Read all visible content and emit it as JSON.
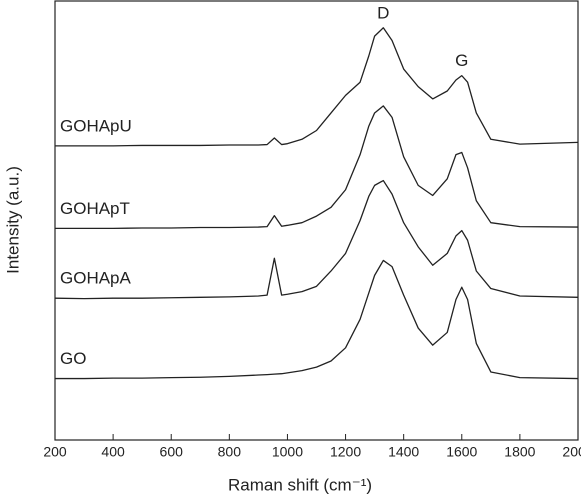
{
  "chart_data": {
    "type": "line",
    "x_label": "Raman shift (cm⁻¹)",
    "y_label": "Intensity (a.u.)",
    "x": [
      200,
      300,
      400,
      500,
      600,
      700,
      800,
      900,
      930,
      955,
      980,
      1000,
      1050,
      1100,
      1150,
      1200,
      1250,
      1280,
      1300,
      1330,
      1360,
      1400,
      1450,
      1500,
      1550,
      1580,
      1600,
      1620,
      1650,
      1700,
      1800,
      2000
    ],
    "series": [
      {
        "name": "GO",
        "color": "#222222",
        "values": [
          14.0,
          14.0,
          14.1,
          14.1,
          14.2,
          14.3,
          14.5,
          14.8,
          14.9,
          15.0,
          15.1,
          15.3,
          15.8,
          16.6,
          18.0,
          21.0,
          27.5,
          33.5,
          37.5,
          40.9,
          39.5,
          33.0,
          25.5,
          21.6,
          24.5,
          32.0,
          34.8,
          32.0,
          22.0,
          15.5,
          14.2,
          14.0
        ]
      },
      {
        "name": "GOHApA",
        "color": "#222222",
        "values": [
          32.3,
          32.2,
          32.3,
          32.3,
          32.4,
          32.5,
          32.6,
          32.8,
          33.0,
          41.4,
          33.0,
          33.2,
          33.8,
          35.0,
          38.5,
          42.5,
          50.0,
          55.5,
          58.0,
          59.1,
          56.0,
          49.5,
          44.0,
          39.8,
          42.5,
          46.5,
          47.7,
          45.5,
          38.5,
          34.5,
          32.8,
          32.5
        ]
      },
      {
        "name": "GOHApT",
        "color": "#222222",
        "values": [
          48.2,
          48.2,
          48.2,
          48.3,
          48.3,
          48.4,
          48.4,
          48.5,
          48.6,
          51.1,
          48.7,
          48.9,
          49.5,
          51.0,
          53.0,
          57.0,
          65.0,
          71.5,
          74.5,
          76.1,
          73.5,
          64.5,
          58.0,
          55.7,
          59.5,
          65.0,
          65.5,
          62.0,
          54.5,
          49.5,
          48.6,
          48.5
        ]
      },
      {
        "name": "GOHApU",
        "color": "#222222",
        "values": [
          67.0,
          67.0,
          67.0,
          67.1,
          67.1,
          67.1,
          67.2,
          67.2,
          67.3,
          68.8,
          67.3,
          67.5,
          68.5,
          70.5,
          74.5,
          78.5,
          81.5,
          87.5,
          92.0,
          93.9,
          91.0,
          84.5,
          80.5,
          77.7,
          79.5,
          82.0,
          83.0,
          81.5,
          74.5,
          68.5,
          67.4,
          67.8
        ]
      }
    ],
    "annotations": [
      {
        "text": "D",
        "x": 1330
      },
      {
        "text": "G",
        "x": 1600
      }
    ],
    "xlim": [
      200,
      2000
    ],
    "xticks": [
      200,
      400,
      600,
      800,
      1000,
      1200,
      1400,
      1600,
      1800,
      2000
    ],
    "ylim": [
      0,
      100
    ]
  }
}
